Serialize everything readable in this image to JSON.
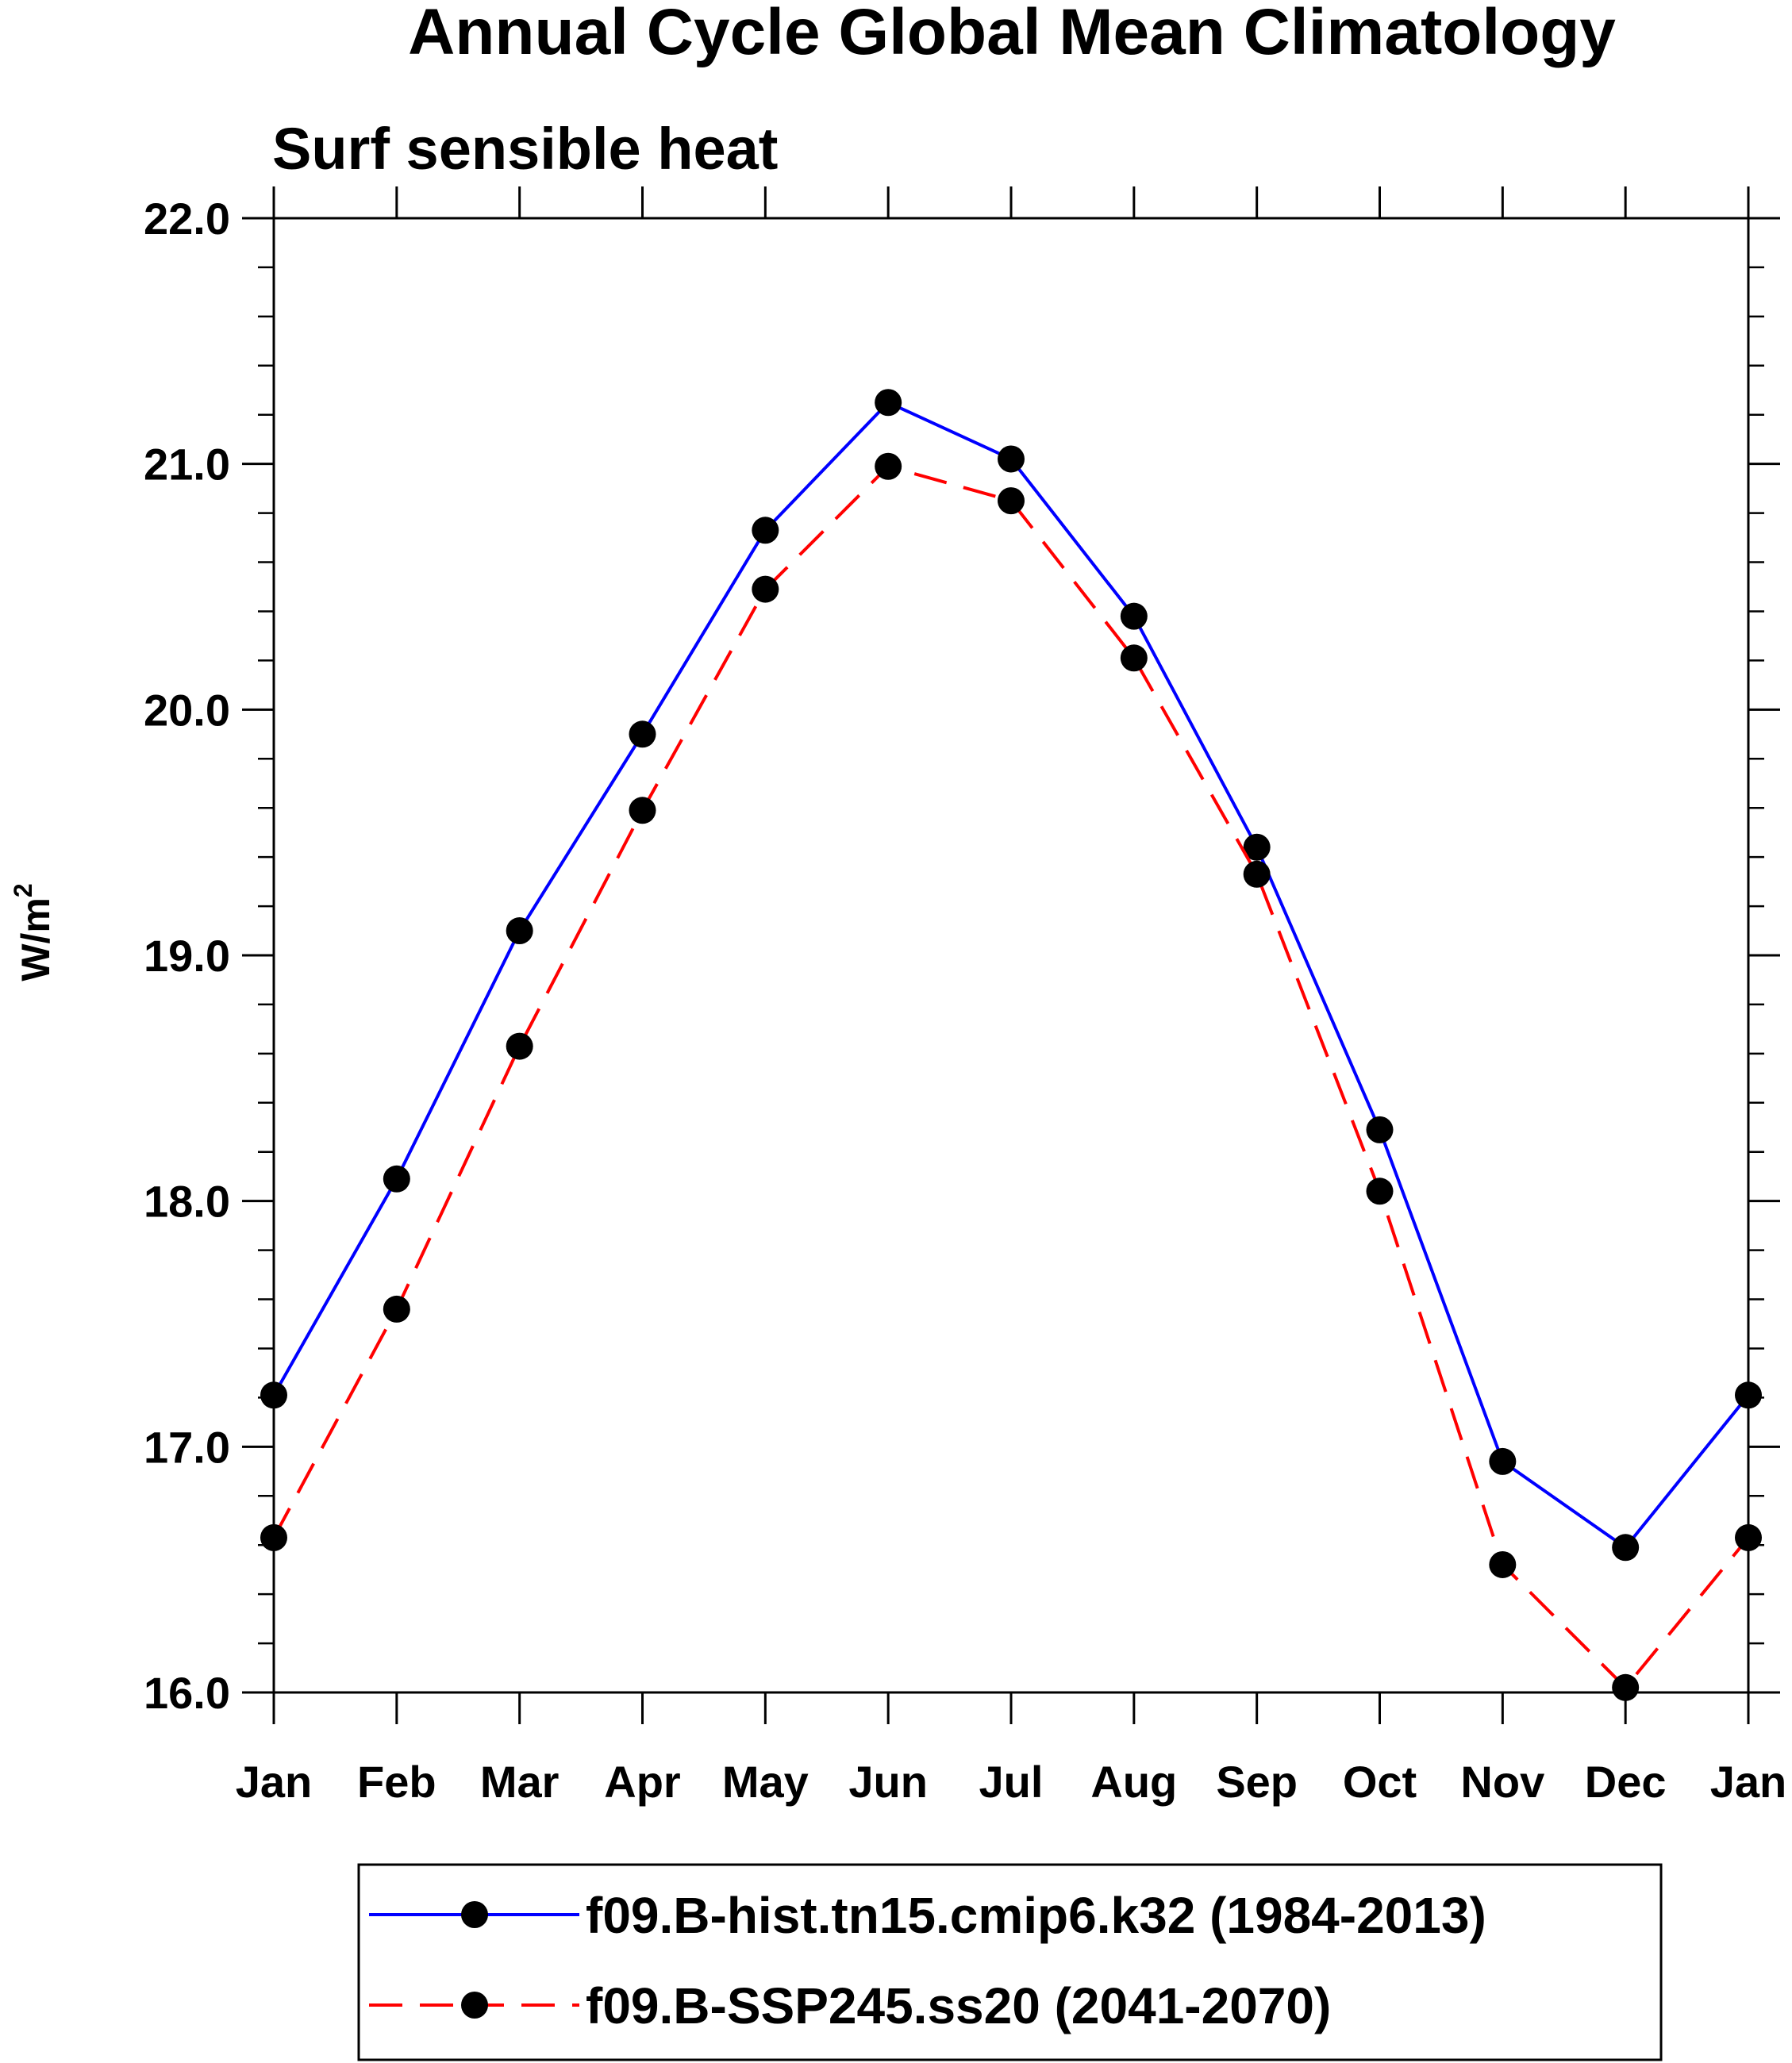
{
  "chart_data": {
    "type": "line",
    "title": "Annual Cycle Global Mean Climatology",
    "subtitle": "Surf sensible heat",
    "xlabel": "",
    "ylabel": "W/m",
    "ylabel_superscript": "2",
    "categories": [
      "Jan",
      "Feb",
      "Mar",
      "Apr",
      "May",
      "Jun",
      "Jul",
      "Aug",
      "Sep",
      "Oct",
      "Nov",
      "Dec",
      "Jan"
    ],
    "ylim": [
      16.0,
      22.0
    ],
    "yticks": [
      16.0,
      17.0,
      18.0,
      19.0,
      20.0,
      21.0,
      22.0
    ],
    "ytick_labels": [
      "16.0",
      "17.0",
      "18.0",
      "19.0",
      "20.0",
      "21.0",
      "22.0"
    ],
    "yminor_step": 0.2,
    "grid": false,
    "legend_position": "bottom",
    "series": [
      {
        "name": "f09.B-hist.tn15.cmip6.k32 (1984-2013)",
        "color": "#0000ff",
        "dash": "solid",
        "marker": "filled-circle",
        "marker_color": "#000000",
        "values": [
          17.21,
          18.09,
          19.1,
          19.9,
          20.73,
          21.25,
          21.02,
          20.38,
          19.44,
          18.29,
          16.94,
          16.59,
          17.21
        ]
      },
      {
        "name": "f09.B-SSP245.ss20 (2041-2070)",
        "color": "#ff0000",
        "dash": "dashed",
        "marker": "filled-circle",
        "marker_color": "#000000",
        "values": [
          16.63,
          17.56,
          18.63,
          19.59,
          20.49,
          20.99,
          20.85,
          20.21,
          19.33,
          18.04,
          16.52,
          16.02,
          16.63
        ]
      }
    ]
  }
}
